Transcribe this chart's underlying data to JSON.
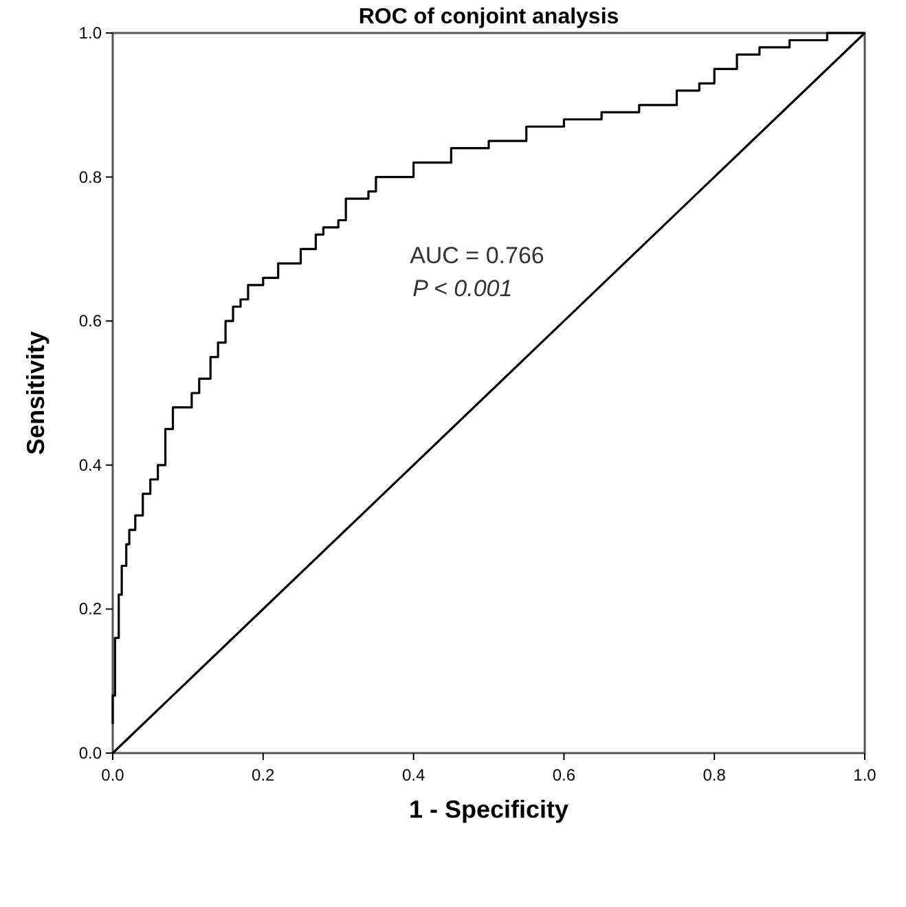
{
  "chart_data": {
    "type": "step",
    "title": "ROC of conjoint analysis",
    "xlabel": "1 - Specificity",
    "ylabel": "Sensitivity",
    "xlim": [
      0,
      1
    ],
    "ylim": [
      0,
      1
    ],
    "xticks": [
      {
        "value": 0,
        "label": "0.0"
      },
      {
        "value": 0.2,
        "label": "0.2"
      },
      {
        "value": 0.4,
        "label": "0.4"
      },
      {
        "value": 0.6,
        "label": "0.6"
      },
      {
        "value": 0.8,
        "label": "0.8"
      },
      {
        "value": 1,
        "label": "1.0"
      }
    ],
    "yticks": [
      {
        "value": 0,
        "label": "0.0"
      },
      {
        "value": 0.2,
        "label": "0.2"
      },
      {
        "value": 0.4,
        "label": "0.4"
      },
      {
        "value": 0.6,
        "label": "0.6"
      },
      {
        "value": 0.8,
        "label": "0.8"
      },
      {
        "value": 1,
        "label": "1.0"
      }
    ],
    "grid": false,
    "line_style": "solid",
    "annotations": [
      "AUC = 0.766",
      "P < 0.001"
    ],
    "series": [
      {
        "type": "step",
        "color": "#000000",
        "x": [
          0,
          0.003,
          0.008,
          0.012,
          0.018,
          0.022,
          0.03,
          0.04,
          0.05,
          0.06,
          0.07,
          0.08,
          0.105,
          0.115,
          0.13,
          0.14,
          0.15,
          0.16,
          0.17,
          0.18,
          0.2,
          0.22,
          0.25,
          0.27,
          0.28,
          0.3,
          0.31,
          0.34,
          0.35,
          0.4,
          0.45,
          0.5,
          0.55,
          0.6,
          0.65,
          0.7,
          0.75,
          0.78,
          0.8,
          0.83,
          0.86,
          0.9,
          0.95,
          1
        ],
        "values": [
          0.04,
          0.08,
          0.16,
          0.22,
          0.26,
          0.29,
          0.31,
          0.33,
          0.36,
          0.38,
          0.4,
          0.45,
          0.48,
          0.5,
          0.52,
          0.55,
          0.57,
          0.6,
          0.62,
          0.63,
          0.65,
          0.66,
          0.68,
          0.7,
          0.72,
          0.73,
          0.74,
          0.77,
          0.78,
          0.8,
          0.82,
          0.84,
          0.85,
          0.87,
          0.88,
          0.89,
          0.9,
          0.92,
          0.93,
          0.95,
          0.97,
          0.98,
          0.99,
          1
        ]
      },
      {
        "type": "line",
        "color": "#000000",
        "x": [
          0,
          1
        ],
        "values": [
          0,
          1
        ]
      }
    ]
  }
}
